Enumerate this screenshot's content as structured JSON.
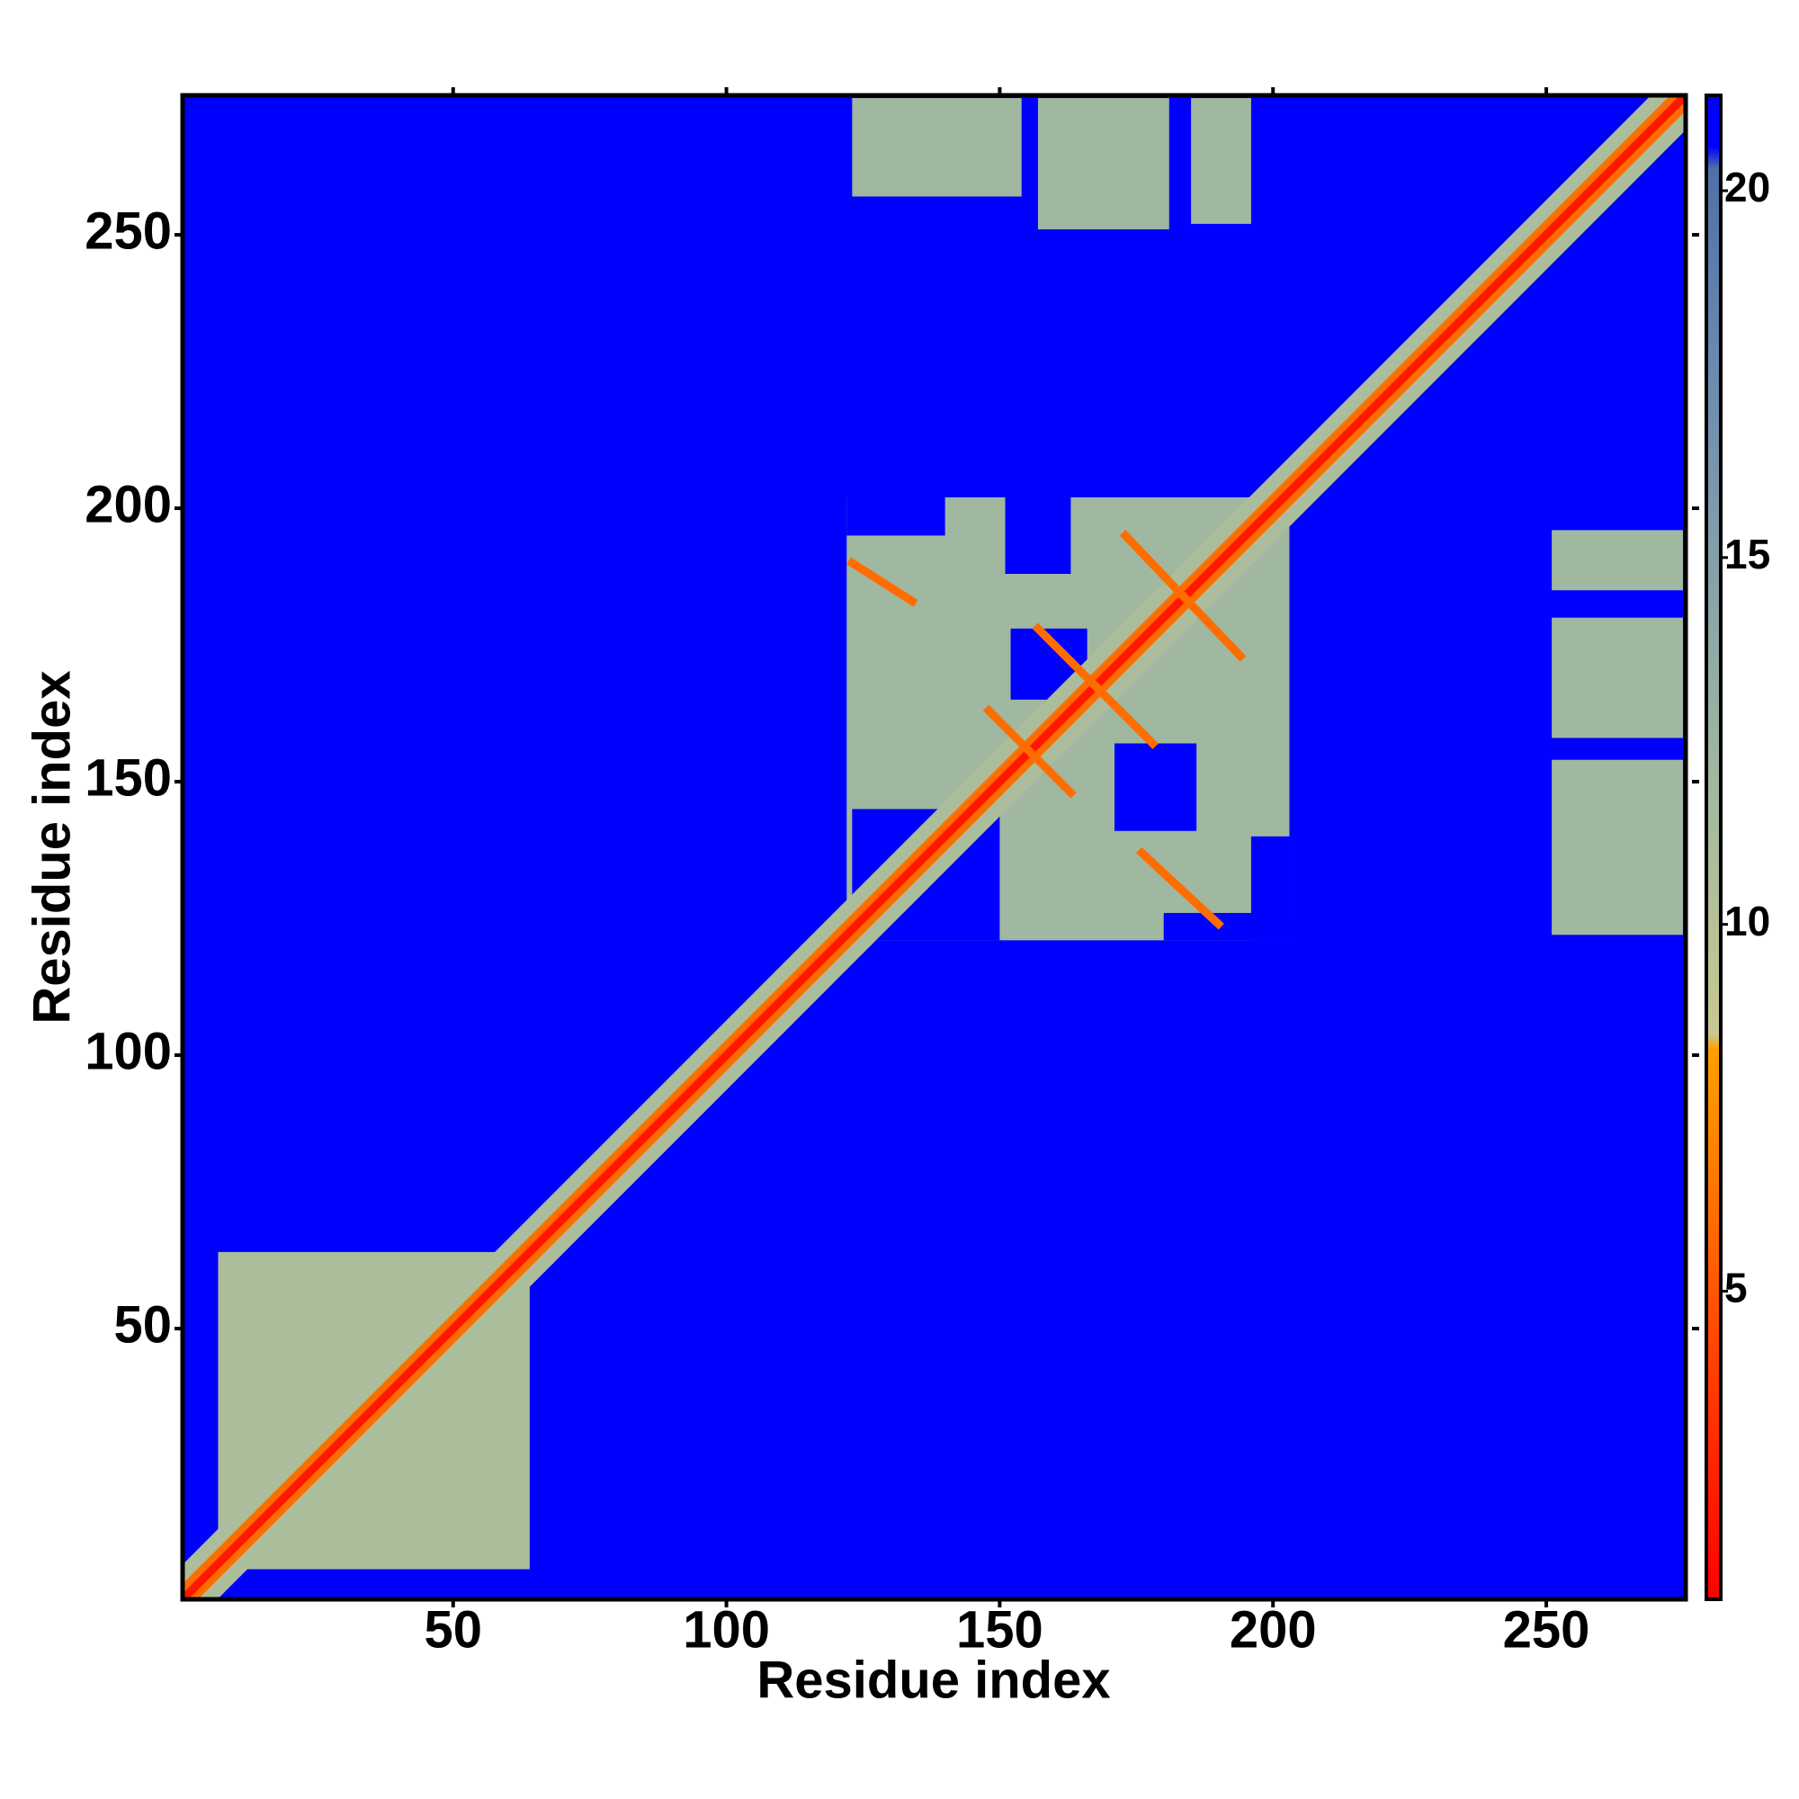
{
  "chart_data": {
    "type": "heatmap",
    "xlabel": "Residue index",
    "ylabel": "Residue index",
    "xlim": [
      0.5,
      275.5
    ],
    "ylim": [
      0.5,
      275.5
    ],
    "xticks": [
      50,
      100,
      150,
      200,
      250
    ],
    "yticks": [
      50,
      100,
      150,
      200,
      250
    ],
    "clim": [
      0.8,
      21.3
    ],
    "cticks": [
      5,
      10,
      15,
      20
    ],
    "colorscale": [
      {
        "value": 0.8,
        "color": "#ff0000"
      },
      {
        "value": 4,
        "color": "#ff4000"
      },
      {
        "value": 8.3,
        "color": "#ffa000"
      },
      {
        "value": 8.5,
        "color": "#c8c890"
      },
      {
        "value": 12,
        "color": "#a0b8a0"
      },
      {
        "value": 17,
        "color": "#7090b0"
      },
      {
        "value": 20.3,
        "color": "#5070a8"
      },
      {
        "value": 20.6,
        "color": "#0000ff"
      },
      {
        "value": 21.3,
        "color": "#0000ff"
      }
    ],
    "background": 21,
    "patches": [
      {
        "x": [
          7,
          64
        ],
        "y": [
          6,
          64
        ],
        "value": 11
      },
      {
        "x": [
          123,
          154
        ],
        "y": [
          257,
          275
        ],
        "value": 12
      },
      {
        "x": [
          157,
          181
        ],
        "y": [
          251,
          275
        ],
        "value": 12
      },
      {
        "x": [
          185,
          196
        ],
        "y": [
          252,
          275
        ],
        "value": 12
      },
      {
        "x": [
          251,
          275
        ],
        "y": [
          185,
          196
        ],
        "value": 12
      },
      {
        "x": [
          251,
          275
        ],
        "y": [
          158,
          180
        ],
        "value": 12
      },
      {
        "x": [
          251,
          275
        ],
        "y": [
          122,
          154
        ],
        "value": 12
      },
      {
        "x": [
          122,
          203
        ],
        "y": [
          121,
          202
        ],
        "value": 12
      },
      {
        "x": [
          123,
          150
        ],
        "y": [
          121,
          145
        ],
        "value": 21
      },
      {
        "x": [
          152,
          166
        ],
        "y": [
          165,
          178
        ],
        "value": 21
      },
      {
        "x": [
          171,
          186
        ],
        "y": [
          141,
          157
        ],
        "value": 21
      },
      {
        "x": [
          122,
          140
        ],
        "y": [
          195,
          203
        ],
        "value": 21
      },
      {
        "x": [
          196,
          203
        ],
        "y": [
          121,
          140
        ],
        "value": 21
      },
      {
        "x": [
          151,
          163
        ],
        "y": [
          188,
          203
        ],
        "value": 21
      },
      {
        "x": [
          180,
          203
        ],
        "y": [
          121,
          126
        ],
        "value": 21
      }
    ],
    "strands": [
      {
        "x": [
          1,
          275
        ],
        "y": [
          1,
          275
        ],
        "width": 9,
        "value": 11
      },
      {
        "x": [
          1,
          275
        ],
        "y": [
          1,
          275
        ],
        "width": 4,
        "value": 6
      },
      {
        "x": [
          1,
          275
        ],
        "y": [
          1,
          275
        ],
        "width": 1.5,
        "value": 2
      },
      {
        "x": [
          123,
          134
        ],
        "y": [
          190,
          183
        ],
        "width": 1.5,
        "value": 6
      },
      {
        "x": [
          173,
          194
        ],
        "y": [
          195,
          173
        ],
        "width": 1.5,
        "value": 6
      },
      {
        "x": [
          157,
          178
        ],
        "y": [
          178,
          157
        ],
        "width": 1.5,
        "value": 6
      },
      {
        "x": [
          148,
          163
        ],
        "y": [
          163,
          148
        ],
        "width": 1.5,
        "value": 6
      },
      {
        "x": [
          176,
          190
        ],
        "y": [
          137,
          124
        ],
        "width": 1.5,
        "value": 6
      }
    ]
  }
}
